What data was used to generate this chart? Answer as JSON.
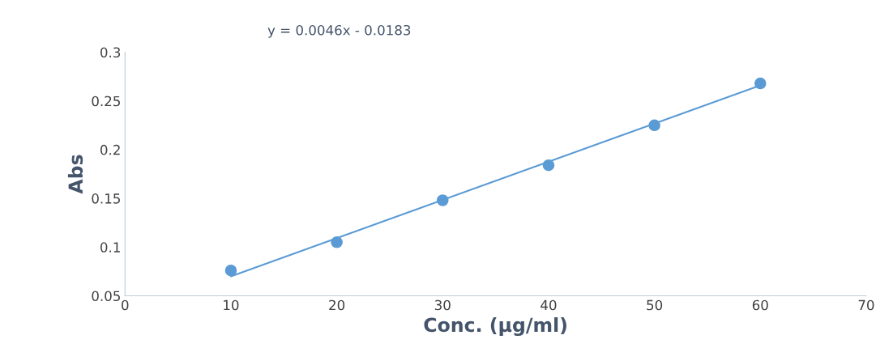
{
  "chart_data": {
    "type": "scatter",
    "xlabel": "Conc. (µg/ml)",
    "ylabel": "Abs",
    "annotations": [
      "y = 0.0046x - 0.0183"
    ],
    "series": [
      {
        "color": "#5b9bd5",
        "x": [
          10,
          20,
          30,
          40,
          50,
          60
        ],
        "values": [
          0.076,
          0.105,
          0.148,
          0.184,
          0.225,
          0.268
        ],
        "marker": "circle"
      },
      {
        "type": "line",
        "color": "#5b9bd5",
        "x": [
          10,
          60
        ],
        "values": [
          0.07,
          0.266
        ],
        "marker": "none",
        "line_style": "solid"
      }
    ],
    "xlim": [
      0,
      70
    ],
    "xticks": [
      0,
      10,
      20,
      30,
      40,
      50,
      60,
      70
    ],
    "ylim": [
      0.05,
      0.3
    ],
    "yticks": [
      0.05,
      0.1,
      0.15,
      0.2,
      0.25,
      0.3
    ],
    "grid": false,
    "legend": false
  }
}
